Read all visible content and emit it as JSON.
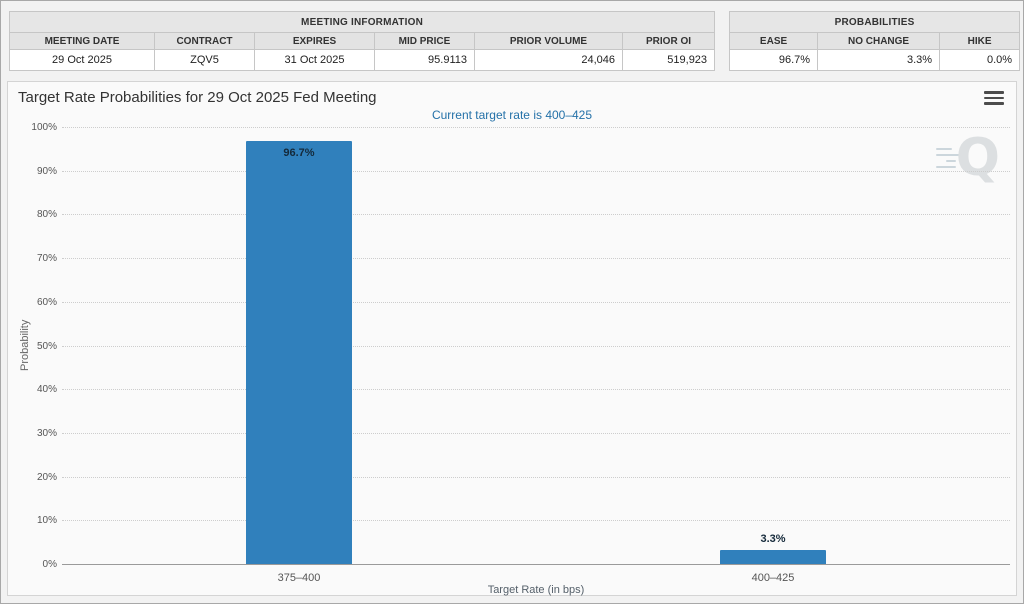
{
  "meeting_info": {
    "title": "MEETING INFORMATION",
    "headers": [
      "MEETING DATE",
      "CONTRACT",
      "EXPIRES",
      "MID PRICE",
      "PRIOR VOLUME",
      "PRIOR OI"
    ],
    "row": [
      "29 Oct 2025",
      "ZQV5",
      "31 Oct 2025",
      "95.9113",
      "24,046",
      "519,923"
    ]
  },
  "probabilities_info": {
    "title": "PROBABILITIES",
    "headers": [
      "EASE",
      "NO CHANGE",
      "HIKE"
    ],
    "row": [
      "96.7%",
      "3.3%",
      "0.0%"
    ]
  },
  "chart": {
    "watermark_letter": "Q"
  },
  "chart_data": {
    "type": "bar",
    "title": "Target Rate Probabilities for 29 Oct 2025 Fed Meeting",
    "subtitle": "Current target rate is 400–425",
    "categories": [
      "375–400",
      "400–425"
    ],
    "values": [
      96.7,
      3.3
    ],
    "value_labels": [
      "96.7%",
      "3.3%"
    ],
    "xlabel": "Target Rate (in bps)",
    "ylabel": "Probability",
    "ylim": [
      0,
      100
    ],
    "yticks": [
      "0%",
      "10%",
      "20%",
      "30%",
      "40%",
      "50%",
      "60%",
      "70%",
      "80%",
      "90%",
      "100%"
    ],
    "grid": "dotted-horizontal",
    "legend": "none",
    "bar_color": "#3080BC",
    "subtitle_color": "#2471A8"
  }
}
